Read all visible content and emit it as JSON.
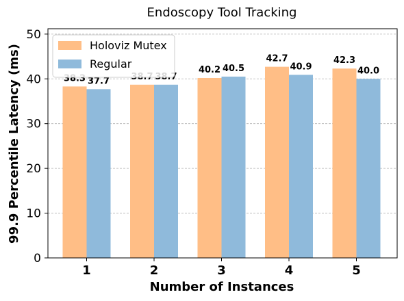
{
  "chart_data": {
    "type": "bar",
    "title": "Endoscopy Tool Tracking",
    "xlabel": "Number of Instances",
    "ylabel": "99.9 Percentile Latency (ms)",
    "categories": [
      "1",
      "2",
      "3",
      "4",
      "5"
    ],
    "series": [
      {
        "name": "Holoviz Mutex",
        "values": [
          38.3,
          38.7,
          40.2,
          42.7,
          42.3
        ],
        "labels": [
          "38.3",
          "38.7",
          "40.2",
          "42.7",
          "42.3"
        ],
        "color": "#ffbe86"
      },
      {
        "name": "Regular",
        "values": [
          37.7,
          38.7,
          40.5,
          40.9,
          40.0
        ],
        "labels": [
          "37.7",
          "38.7",
          "40.5",
          "40.9",
          "40.0"
        ],
        "color": "#8fbadb"
      }
    ],
    "ylim": [
      0,
      51.2
    ],
    "yticks": [
      0,
      10,
      20,
      30,
      40,
      50
    ],
    "ytick_labels": [
      "0",
      "10",
      "20",
      "30",
      "40",
      "50"
    ],
    "grid": "y-dashed",
    "legend_position": "top-left"
  }
}
